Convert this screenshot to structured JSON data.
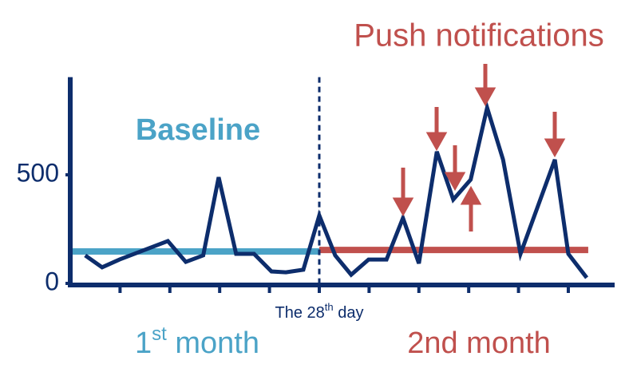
{
  "chart_data": {
    "type": "line",
    "colors": {
      "axis": "#0d2d6c",
      "baseline": "#4ba3c7",
      "push": "#c0504d"
    },
    "xlim": [
      0,
      10.93
    ],
    "xticks": [
      1,
      2,
      3,
      4,
      5,
      6,
      7,
      8,
      9,
      10
    ],
    "ylim": [
      0,
      950
    ],
    "yticks": [
      0,
      500
    ],
    "series": [
      {
        "color": "#0d2d6c",
        "x": [
          0.3,
          0.64,
          0.99,
          1.96,
          2.32,
          2.67,
          2.98,
          3.33,
          3.69,
          4.04,
          4.33,
          4.68,
          5.0,
          5.32,
          5.64,
          5.99,
          6.35,
          6.68,
          7.0,
          7.36,
          7.69,
          8.04,
          8.37,
          8.69,
          9.04,
          9.73,
          10.0,
          10.37
        ],
        "values": [
          129,
          74,
          110,
          195,
          99,
          129,
          489,
          136,
          136,
          55,
          51,
          63,
          313,
          129,
          40,
          110,
          110,
          301,
          92,
          607,
          386,
          478,
          809,
          570,
          136,
          570,
          136,
          26
        ]
      }
    ],
    "reference_segments": [
      {
        "x0": 0,
        "x1": 5.0,
        "value": 147,
        "color": "#4ba3c7"
      },
      {
        "x0": 5.0,
        "x1": 10.4,
        "value": 154,
        "color": "#c0504d"
      }
    ],
    "marker_line_x": 5.0,
    "annotations": {
      "push": "Push notifications",
      "baseline": "Baseline",
      "day": {
        "pre": "The 28",
        "sup": "th",
        "post": " day"
      },
      "month1": {
        "pre": "1",
        "sup": "st",
        "post": " month"
      },
      "month2": "2nd month"
    }
  }
}
